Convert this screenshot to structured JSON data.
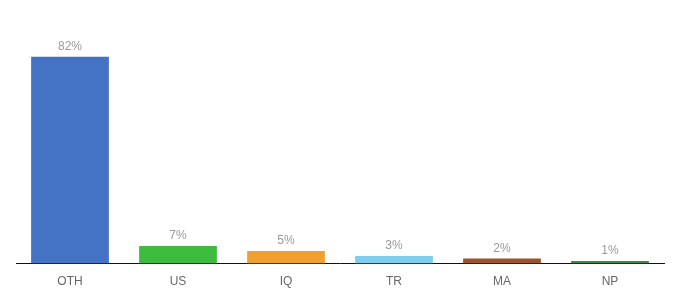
{
  "chart_data": {
    "type": "bar",
    "categories": [
      "OTH",
      "US",
      "IQ",
      "TR",
      "MA",
      "NP"
    ],
    "values": [
      82,
      7,
      5,
      3,
      2,
      1
    ],
    "value_labels": [
      "82%",
      "7%",
      "5%",
      "3%",
      "2%",
      "1%"
    ],
    "colors": [
      "#4472c4",
      "#3dbb3d",
      "#f0a030",
      "#7ecfed",
      "#a0522d",
      "#3a8c3a"
    ],
    "ylim": [
      0,
      95
    ],
    "grid": false,
    "data_labels": true,
    "tick_labels": "x"
  }
}
